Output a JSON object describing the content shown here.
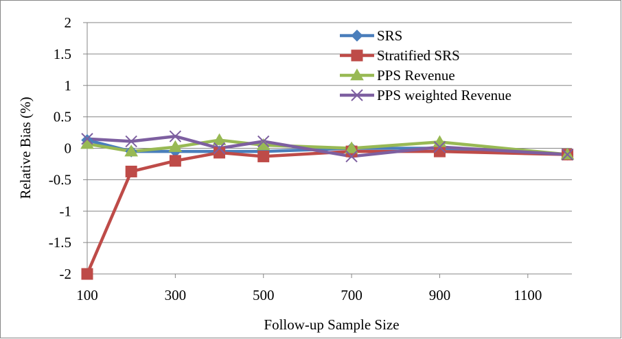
{
  "chart_data": {
    "type": "line",
    "title": "",
    "xlabel": "Follow-up Sample Size",
    "ylabel": "Relative Bias (%)",
    "xlim": [
      100,
      1200
    ],
    "ylim": [
      -2,
      2
    ],
    "x_ticks": [
      100,
      300,
      500,
      700,
      900,
      1100
    ],
    "x_tick_labels": [
      "100",
      "300",
      "500",
      "700",
      "900",
      "1100"
    ],
    "y_ticks": [
      2,
      1.5,
      1,
      0.5,
      0,
      -0.5,
      -1,
      -1.5,
      -2
    ],
    "y_tick_labels": [
      "2",
      "1.5",
      "1",
      "0.5",
      "0",
      "-0.5",
      "-1",
      "-1.5",
      "-2"
    ],
    "grid": "horizontal",
    "legend_position": "top-right",
    "series": [
      {
        "name": "SRS",
        "color": "#4a7ebb",
        "marker": "diamond",
        "x": [
          100,
          200,
          300,
          400,
          500,
          700,
          900,
          1190
        ],
        "y": [
          0.13,
          -0.05,
          -0.05,
          -0.05,
          -0.05,
          0.0,
          0.0,
          -0.1
        ]
      },
      {
        "name": "Stratified SRS",
        "color": "#be4b48",
        "marker": "square",
        "x": [
          100,
          200,
          300,
          400,
          500,
          700,
          900,
          1190
        ],
        "y": [
          -2.0,
          -0.37,
          -0.2,
          -0.07,
          -0.13,
          -0.05,
          -0.05,
          -0.1
        ]
      },
      {
        "name": "PPS Revenue",
        "color": "#98b954",
        "marker": "triangle",
        "x": [
          100,
          200,
          300,
          400,
          500,
          700,
          900,
          1190
        ],
        "y": [
          0.07,
          -0.05,
          0.02,
          0.13,
          0.05,
          0.0,
          0.1,
          -0.1
        ]
      },
      {
        "name": "PPS weighted Revenue",
        "color": "#7d5fa0",
        "marker": "x",
        "x": [
          100,
          200,
          300,
          400,
          500,
          700,
          900,
          1190
        ],
        "y": [
          0.15,
          0.11,
          0.19,
          0.0,
          0.11,
          -0.13,
          0.02,
          -0.1
        ]
      }
    ]
  }
}
